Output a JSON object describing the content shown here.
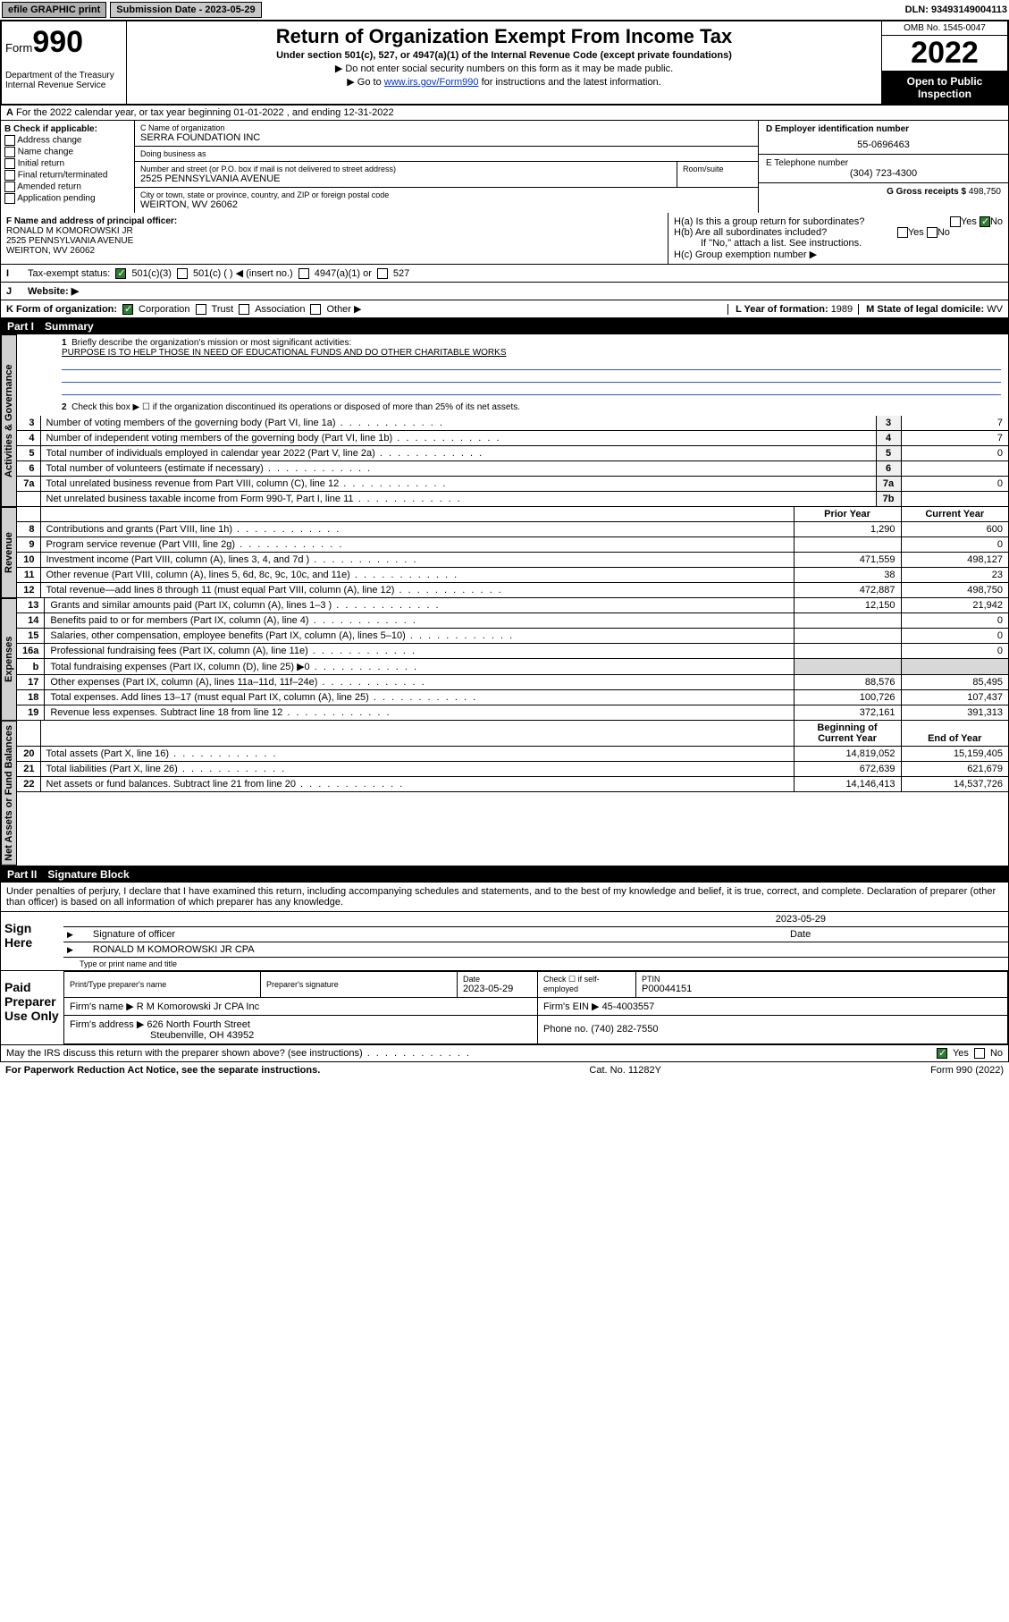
{
  "topbar": {
    "efile": "efile GRAPHIC print",
    "submission_label": "Submission Date - 2023-05-29",
    "dln": "DLN: 93493149004113"
  },
  "header": {
    "form_prefix": "Form",
    "form_num": "990",
    "dept": "Department of the Treasury",
    "irs": "Internal Revenue Service",
    "title": "Return of Organization Exempt From Income Tax",
    "subtitle": "Under section 501(c), 527, or 4947(a)(1) of the Internal Revenue Code (except private foundations)",
    "note1": "▶ Do not enter social security numbers on this form as it may be made public.",
    "note2_pre": "▶ Go to ",
    "note2_link": "www.irs.gov/Form990",
    "note2_post": " for instructions and the latest information.",
    "omb": "OMB No. 1545-0047",
    "year": "2022",
    "open": "Open to Public Inspection"
  },
  "line_a": "For the 2022 calendar year, or tax year beginning 01-01-2022   , and ending 12-31-2022",
  "section_b": {
    "title": "B Check if applicable:",
    "opts": [
      "Address change",
      "Name change",
      "Initial return",
      "Final return/terminated",
      "Amended return",
      "Application pending"
    ]
  },
  "section_c": {
    "name_label": "C Name of organization",
    "name": "SERRA FOUNDATION INC",
    "dba_label": "Doing business as",
    "dba": "",
    "addr_label": "Number and street (or P.O. box if mail is not delivered to street address)",
    "room_label": "Room/suite",
    "addr": "2525 PENNSYLVANIA AVENUE",
    "city_label": "City or town, state or province, country, and ZIP or foreign postal code",
    "city": "WEIRTON, WV  26062"
  },
  "section_d": {
    "label": "D Employer identification number",
    "ein": "55-0696463"
  },
  "section_e": {
    "label": "E Telephone number",
    "phone": "(304) 723-4300"
  },
  "section_g": {
    "label": "G Gross receipts $",
    "val": "498,750"
  },
  "section_f": {
    "label": "F  Name and address of principal officer:",
    "name": "RONALD M KOMOROWSKI JR",
    "addr1": "2525 PENNSYLVANIA AVENUE",
    "addr2": "WEIRTON, WV  26062"
  },
  "section_h": {
    "ha": "H(a)  Is this a group return for subordinates?",
    "hb": "H(b)  Are all subordinates included?",
    "hb_note": "If \"No,\" attach a list. See instructions.",
    "hc": "H(c)  Group exemption number ▶",
    "yes": "Yes",
    "no": "No"
  },
  "section_i": {
    "label": "Tax-exempt status:",
    "o1": "501(c)(3)",
    "o2": "501(c) (   ) ◀ (insert no.)",
    "o3": "4947(a)(1) or",
    "o4": "527"
  },
  "section_j": {
    "label": "Website: ▶",
    "val": ""
  },
  "section_k": {
    "label": "K Form of organization:",
    "o1": "Corporation",
    "o2": "Trust",
    "o3": "Association",
    "o4": "Other ▶"
  },
  "section_l": {
    "label": "L Year of formation:",
    "val": "1989"
  },
  "section_m": {
    "label": "M State of legal domicile:",
    "val": "WV"
  },
  "part1": {
    "hdr_num": "Part I",
    "hdr_title": "Summary",
    "q1": "Briefly describe the organization's mission or most significant activities:",
    "q1_text": "PURPOSE IS TO HELP THOSE IN NEED OF EDUCATIONAL FUNDS AND DO OTHER CHARITABLE WORKS",
    "q2": "Check this box ▶ ☐  if the organization discontinued its operations or disposed of more than 25% of its net assets.",
    "rows_gov": [
      {
        "n": "3",
        "t": "Number of voting members of the governing body (Part VI, line 1a)",
        "box": "3",
        "v": "7"
      },
      {
        "n": "4",
        "t": "Number of independent voting members of the governing body (Part VI, line 1b)",
        "box": "4",
        "v": "7"
      },
      {
        "n": "5",
        "t": "Total number of individuals employed in calendar year 2022 (Part V, line 2a)",
        "box": "5",
        "v": "0"
      },
      {
        "n": "6",
        "t": "Total number of volunteers (estimate if necessary)",
        "box": "6",
        "v": ""
      },
      {
        "n": "7a",
        "t": "Total unrelated business revenue from Part VIII, column (C), line 12",
        "box": "7a",
        "v": "0"
      },
      {
        "n": "",
        "t": "Net unrelated business taxable income from Form 990-T, Part I, line 11",
        "box": "7b",
        "v": ""
      }
    ],
    "col_prior": "Prior Year",
    "col_curr": "Current Year",
    "rows_rev": [
      {
        "n": "8",
        "t": "Contributions and grants (Part VIII, line 1h)",
        "p": "1,290",
        "c": "600"
      },
      {
        "n": "9",
        "t": "Program service revenue (Part VIII, line 2g)",
        "p": "",
        "c": "0"
      },
      {
        "n": "10",
        "t": "Investment income (Part VIII, column (A), lines 3, 4, and 7d )",
        "p": "471,559",
        "c": "498,127"
      },
      {
        "n": "11",
        "t": "Other revenue (Part VIII, column (A), lines 5, 6d, 8c, 9c, 10c, and 11e)",
        "p": "38",
        "c": "23"
      },
      {
        "n": "12",
        "t": "Total revenue—add lines 8 through 11 (must equal Part VIII, column (A), line 12)",
        "p": "472,887",
        "c": "498,750"
      }
    ],
    "rows_exp": [
      {
        "n": "13",
        "t": "Grants and similar amounts paid (Part IX, column (A), lines 1–3 )",
        "p": "12,150",
        "c": "21,942"
      },
      {
        "n": "14",
        "t": "Benefits paid to or for members (Part IX, column (A), line 4)",
        "p": "",
        "c": "0"
      },
      {
        "n": "15",
        "t": "Salaries, other compensation, employee benefits (Part IX, column (A), lines 5–10)",
        "p": "",
        "c": "0"
      },
      {
        "n": "16a",
        "t": "Professional fundraising fees (Part IX, column (A), line 11e)",
        "p": "",
        "c": "0"
      },
      {
        "n": "b",
        "t": "Total fundraising expenses (Part IX, column (D), line 25) ▶0",
        "p": "shade",
        "c": "shade"
      },
      {
        "n": "17",
        "t": "Other expenses (Part IX, column (A), lines 11a–11d, 11f–24e)",
        "p": "88,576",
        "c": "85,495"
      },
      {
        "n": "18",
        "t": "Total expenses. Add lines 13–17 (must equal Part IX, column (A), line 25)",
        "p": "100,726",
        "c": "107,437"
      },
      {
        "n": "19",
        "t": "Revenue less expenses. Subtract line 18 from line 12",
        "p": "372,161",
        "c": "391,313"
      }
    ],
    "col_beg": "Beginning of Current Year",
    "col_end": "End of Year",
    "rows_net": [
      {
        "n": "20",
        "t": "Total assets (Part X, line 16)",
        "p": "14,819,052",
        "c": "15,159,405"
      },
      {
        "n": "21",
        "t": "Total liabilities (Part X, line 26)",
        "p": "672,639",
        "c": "621,679"
      },
      {
        "n": "22",
        "t": "Net assets or fund balances. Subtract line 21 from line 20",
        "p": "14,146,413",
        "c": "14,537,726"
      }
    ],
    "side_gov": "Activities & Governance",
    "side_rev": "Revenue",
    "side_exp": "Expenses",
    "side_net": "Net Assets or Fund Balances"
  },
  "part2": {
    "hdr_num": "Part II",
    "hdr_title": "Signature Block",
    "decl": "Under penalties of perjury, I declare that I have examined this return, including accompanying schedules and statements, and to the best of my knowledge and belief, it is true, correct, and complete. Declaration of preparer (other than officer) is based on all information of which preparer has any knowledge.",
    "sign_here": "Sign Here",
    "sig_officer": "Signature of officer",
    "sig_date_label": "Date",
    "sig_date": "2023-05-29",
    "officer_name": "RONALD M KOMOROWSKI JR CPA",
    "name_title_label": "Type or print name and title",
    "paid": "Paid Preparer Use Only",
    "prep_name_label": "Print/Type preparer's name",
    "prep_sig_label": "Preparer's signature",
    "prep_date_label": "Date",
    "prep_date": "2023-05-29",
    "check_if": "Check ☐ if self-employed",
    "ptin_label": "PTIN",
    "ptin": "P00044151",
    "firm_name_label": "Firm's name   ▶",
    "firm_name": "R M Komorowski Jr CPA Inc",
    "firm_ein_label": "Firm's EIN ▶",
    "firm_ein": "45-4003557",
    "firm_addr_label": "Firm's address ▶",
    "firm_addr1": "626 North Fourth Street",
    "firm_addr2": "Steubenville, OH  43952",
    "firm_phone_label": "Phone no.",
    "firm_phone": "(740) 282-7550",
    "discuss": "May the IRS discuss this return with the preparer shown above? (see instructions)",
    "yes": "Yes",
    "no": "No"
  },
  "footer": {
    "left": "For Paperwork Reduction Act Notice, see the separate instructions.",
    "mid": "Cat. No. 11282Y",
    "right": "Form 990 (2022)"
  }
}
